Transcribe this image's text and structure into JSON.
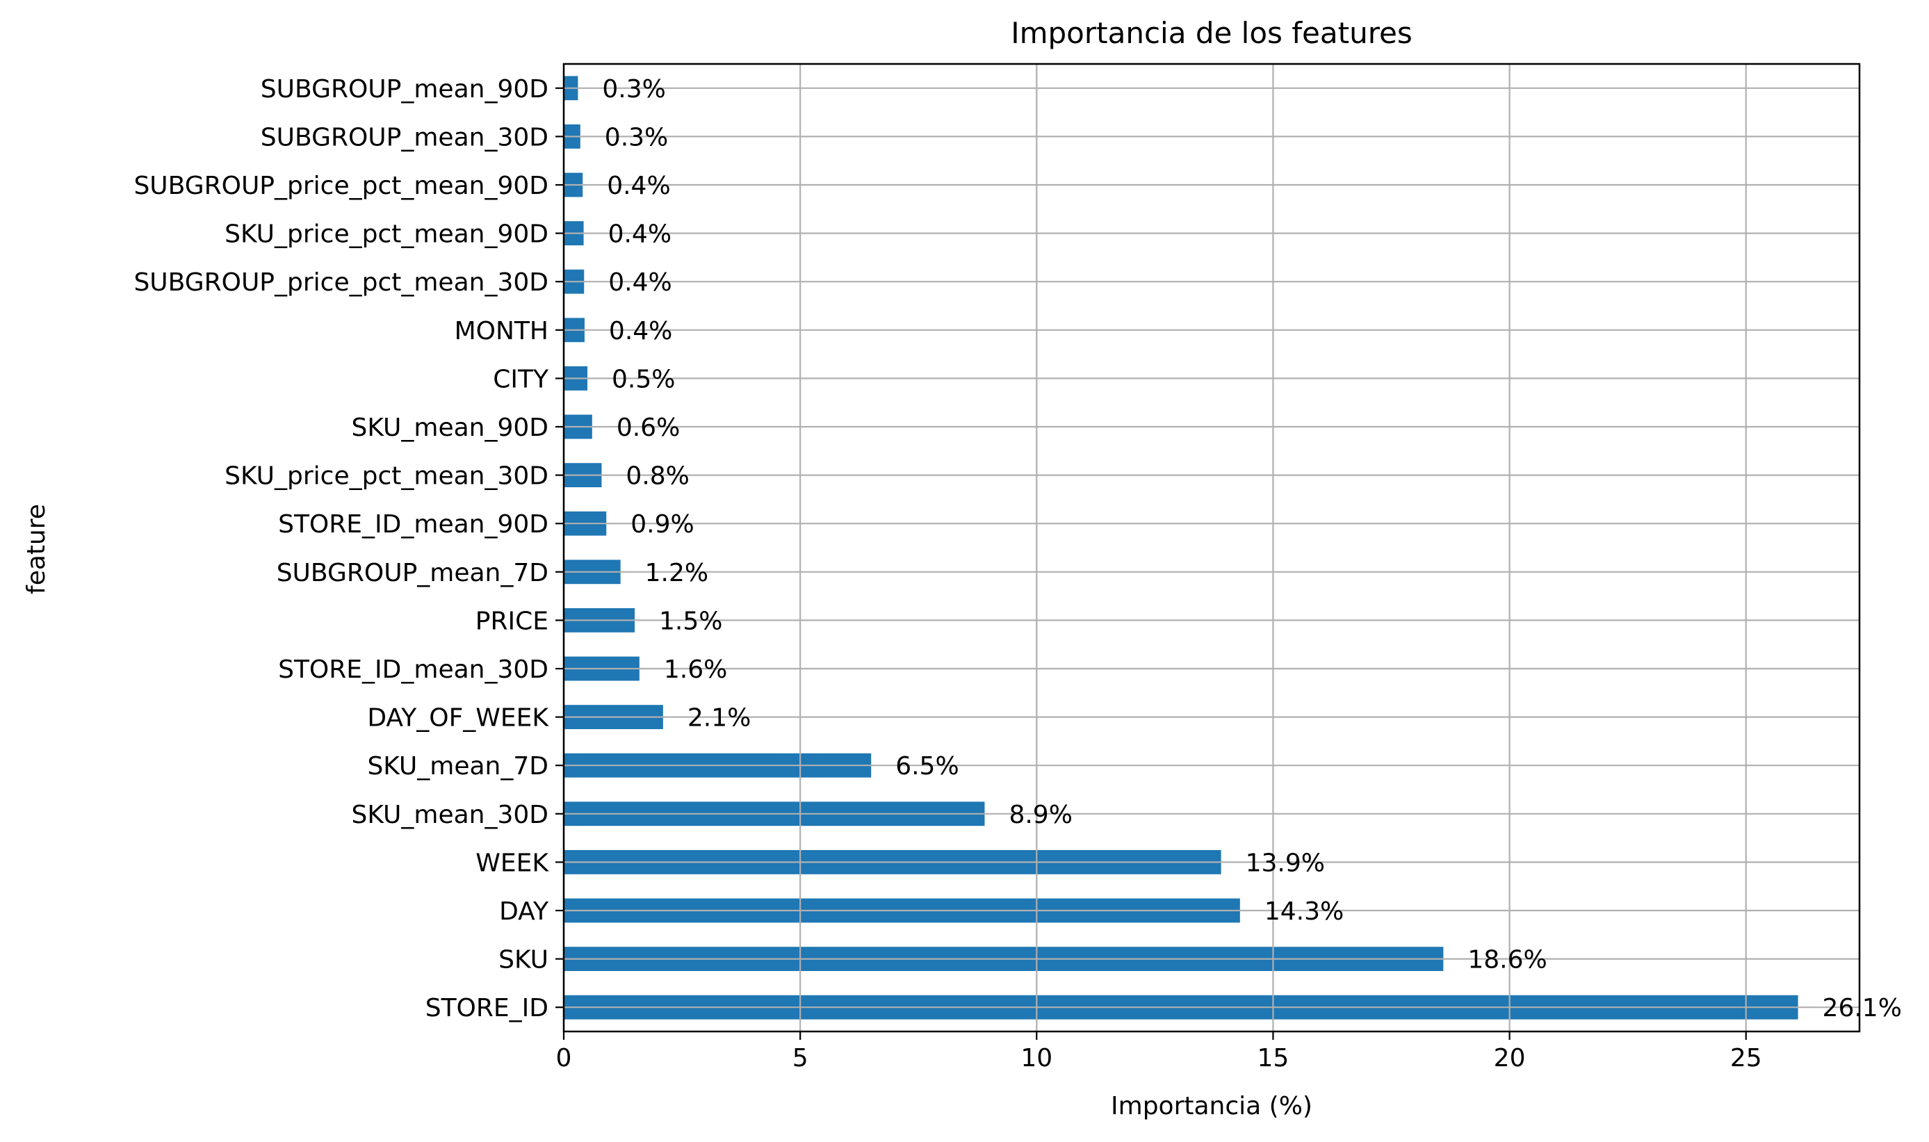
{
  "chart_data": {
    "type": "bar",
    "orientation": "horizontal",
    "title": "Importancia de los features",
    "xlabel": "Importancia (%)",
    "ylabel": "feature",
    "xlim": [
      0,
      27.4
    ],
    "xticks": [
      0,
      5,
      10,
      15,
      20,
      25
    ],
    "grid": true,
    "bar_color": "#1f77b4",
    "categories": [
      "SUBGROUP_mean_90D",
      "SUBGROUP_mean_30D",
      "SUBGROUP_price_pct_mean_90D",
      "SKU_price_pct_mean_90D",
      "SUBGROUP_price_pct_mean_30D",
      "MONTH",
      "CITY",
      "SKU_mean_90D",
      "SKU_price_pct_mean_30D",
      "STORE_ID_mean_90D",
      "SUBGROUP_mean_7D",
      "PRICE",
      "STORE_ID_mean_30D",
      "DAY_OF_WEEK",
      "SKU_mean_7D",
      "SKU_mean_30D",
      "WEEK",
      "DAY",
      "SKU",
      "STORE_ID"
    ],
    "values": [
      0.3,
      0.35,
      0.4,
      0.42,
      0.43,
      0.44,
      0.5,
      0.6,
      0.8,
      0.9,
      1.2,
      1.5,
      1.6,
      2.1,
      6.5,
      8.9,
      13.9,
      14.3,
      18.6,
      26.1
    ],
    "data_labels": [
      "0.3%",
      "0.3%",
      "0.4%",
      "0.4%",
      "0.4%",
      "0.4%",
      "0.5%",
      "0.6%",
      "0.8%",
      "0.9%",
      "1.2%",
      "1.5%",
      "1.6%",
      "2.1%",
      "6.5%",
      "8.9%",
      "13.9%",
      "14.3%",
      "18.6%",
      "26.1%"
    ]
  }
}
